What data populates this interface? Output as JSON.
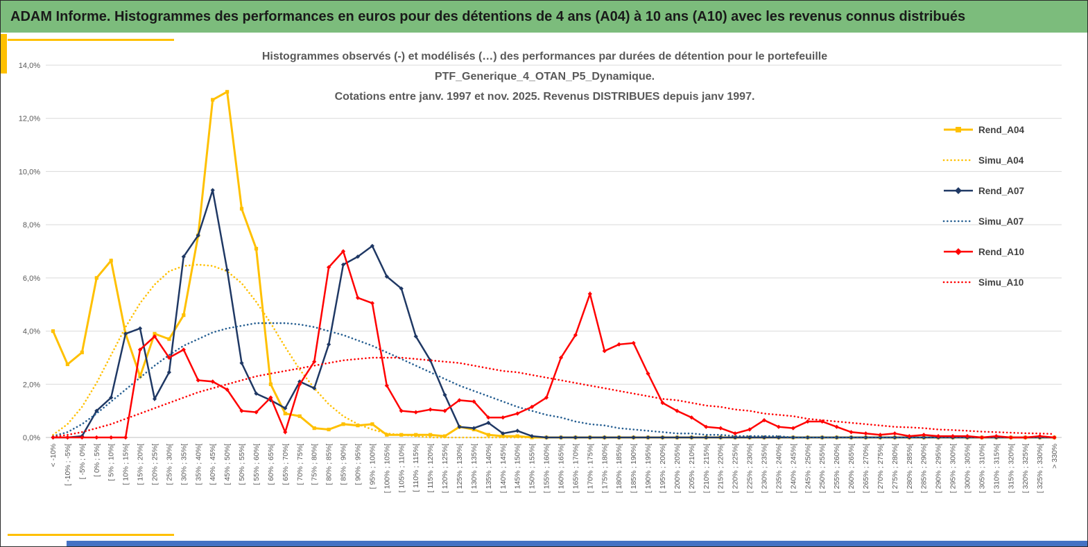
{
  "header": {
    "title": "ADAM Informe. Histogrammes des performances en euros pour des détentions de 4 ans (A04) à 10 ans (A10) avec les revenus connus distribués",
    "bg_color": "#7CBC7C",
    "text_color": "#1A1A1A"
  },
  "colors": {
    "accent_yellow": "#FFC000",
    "bottom_bar_blue": "#4472C4",
    "grid": "#D9D9D9",
    "axis_line": "#BFBFBF",
    "axis_text": "#595959",
    "chart_title": "#595959"
  },
  "chart_data": {
    "type": "line",
    "title_lines": [
      "Histogrammes observés (-) et modélisés (…) des performances par durées de détention pour le portefeuille",
      "PTF_Generique_4_OTAN_P5_Dynamique.",
      "Cotations entre janv. 1997 et nov. 2025. Revenus DISTRIBUES depuis janv 1997."
    ],
    "ylabel": "",
    "xlabel": "",
    "y_unit": "%",
    "ylim": [
      0,
      14
    ],
    "ytick_step": 2,
    "ytick_labels": [
      "0,0%",
      "2,0%",
      "4,0%",
      "6,0%",
      "8,0%",
      "10,0%",
      "12,0%",
      "14,0%"
    ],
    "grid": true,
    "legend_position": "right",
    "categories": [
      "< -10%",
      "[ -10% ; -5%[",
      "[ -5% ; 0%[",
      "[ 0% ; 5%[",
      "[ 5% ; 10%[",
      "[ 10% ; 15%[",
      "[ 15% ; 20%[",
      "[ 20% ; 25%[",
      "[ 25% ; 30%[",
      "[ 30% ; 35%[",
      "[ 35% ; 40%[",
      "[ 40% ; 45%[",
      "[ 45% ; 50%[",
      "[ 50% ; 55%[",
      "[ 55% ; 60%[",
      "[ 60% ; 65%[",
      "[ 65% ; 70%[",
      "[ 70% ; 75%[",
      "[ 75% ; 80%[",
      "[ 80% ; 85%[",
      "[ 85% ; 90%[",
      "[ 90% ; 95%[",
      "[ 95% ; 100%[",
      "[ 100% ; 105%[",
      "[ 105% ; 110%[",
      "[ 110% ; 115%[",
      "[ 115% ; 120%[",
      "[ 120% ; 125%[",
      "[ 125% ; 130%[",
      "[ 130% ; 135%[",
      "[ 135% ; 140%[",
      "[ 140% ; 145%[",
      "[ 145% ; 150%[",
      "[ 150% ; 155%[",
      "[ 155% ; 160%[",
      "[ 160% ; 165%[",
      "[ 165% ; 170%[",
      "[ 170% ; 175%[",
      "[ 175% ; 180%[",
      "[ 180% ; 185%[",
      "[ 185% ; 190%[",
      "[ 190% ; 195%[",
      "[ 195% ; 200%[",
      "[ 200% ; 205%[",
      "[ 205% ; 210%[",
      "[ 210% ; 215%[",
      "[ 215% ; 220%[",
      "[ 220% ; 225%[",
      "[ 225% ; 230%[",
      "[ 230% ; 235%[",
      "[ 235% ; 240%[",
      "[ 240% ; 245%[",
      "[ 245% ; 250%[",
      "[ 250% ; 255%[",
      "[ 255% ; 260%[",
      "[ 260% ; 265%[",
      "[ 265% ; 270%[",
      "[ 270% ; 275%[",
      "[ 275% ; 280%[",
      "[ 280% ; 285%[",
      "[ 285% ; 290%[",
      "[ 290% ; 295%[",
      "[ 295% ; 300%[",
      "[ 300% ; 305%[",
      "[ 305% ; 310%[",
      "[ 310% ; 315%[",
      "[ 315% ; 320%[",
      "[ 320% ; 325%[",
      "[ 325% ; 330%[",
      "> 330%"
    ],
    "series": [
      {
        "name": "Rend_A04",
        "color": "#FFC000",
        "style": "solid",
        "marker": "square",
        "width": 3,
        "values": [
          4.0,
          2.75,
          3.2,
          6.0,
          6.65,
          3.9,
          2.3,
          3.9,
          3.7,
          4.6,
          7.6,
          12.7,
          13.0,
          8.6,
          7.1,
          2.0,
          0.9,
          0.8,
          0.35,
          0.3,
          0.5,
          0.45,
          0.5,
          0.1,
          0.1,
          0.1,
          0.1,
          0.05,
          0.4,
          0.3,
          0.1,
          0.05,
          0.05,
          0,
          0,
          0,
          0,
          0,
          0,
          0,
          0,
          0,
          0,
          0,
          0,
          0,
          0,
          0,
          0,
          0,
          0,
          0,
          0,
          0,
          0,
          0,
          0,
          0,
          0,
          0,
          0,
          0,
          0,
          0,
          0,
          0,
          0,
          0,
          0,
          0
        ]
      },
      {
        "name": "Simu_A04",
        "color": "#FFC000",
        "style": "dotted",
        "marker": "none",
        "width": 2.6,
        "values": [
          0.1,
          0.5,
          1.15,
          2.05,
          3.1,
          4.15,
          5.05,
          5.75,
          6.25,
          6.45,
          6.5,
          6.45,
          6.25,
          5.8,
          5.1,
          4.3,
          3.4,
          2.55,
          1.85,
          1.25,
          0.8,
          0.5,
          0.3,
          0.15,
          0.1,
          0.05,
          0,
          0,
          0,
          0,
          0,
          0,
          0,
          0,
          0,
          0,
          0,
          0,
          0,
          0,
          0,
          0,
          0,
          0,
          0,
          0,
          0,
          0,
          0,
          0,
          0,
          0,
          0,
          0,
          0,
          0,
          0,
          0,
          0,
          0,
          0,
          0,
          0,
          0,
          0,
          0,
          0,
          0,
          0,
          0
        ]
      },
      {
        "name": "Rend_A07",
        "color": "#1F3864",
        "style": "solid",
        "marker": "diamond",
        "width": 2.5,
        "values": [
          0,
          0,
          0.05,
          1.0,
          1.5,
          3.9,
          4.1,
          1.45,
          2.45,
          6.8,
          7.6,
          9.3,
          6.3,
          2.8,
          1.65,
          1.4,
          1.1,
          2.1,
          1.85,
          3.5,
          6.5,
          6.8,
          7.2,
          6.05,
          5.6,
          3.8,
          2.9,
          1.6,
          0.4,
          0.35,
          0.55,
          0.15,
          0.25,
          0.05,
          0,
          0,
          0,
          0,
          0,
          0,
          0,
          0,
          0,
          0,
          0,
          0,
          0,
          0,
          0,
          0,
          0,
          0,
          0,
          0,
          0,
          0,
          0,
          0,
          0,
          0,
          0,
          0,
          0,
          0,
          0,
          0,
          0,
          0,
          0,
          0
        ]
      },
      {
        "name": "Simu_A07",
        "color": "#255E91",
        "style": "dotted",
        "marker": "none",
        "width": 2.6,
        "values": [
          0.05,
          0.2,
          0.5,
          0.9,
          1.35,
          1.8,
          2.25,
          2.7,
          3.1,
          3.45,
          3.7,
          3.95,
          4.1,
          4.2,
          4.3,
          4.3,
          4.3,
          4.25,
          4.15,
          4.0,
          3.85,
          3.65,
          3.45,
          3.2,
          2.95,
          2.7,
          2.45,
          2.2,
          1.95,
          1.75,
          1.55,
          1.35,
          1.15,
          1.0,
          0.85,
          0.75,
          0.6,
          0.5,
          0.45,
          0.35,
          0.3,
          0.25,
          0.2,
          0.15,
          0.15,
          0.1,
          0.1,
          0.05,
          0.05,
          0.05,
          0.05,
          0,
          0,
          0,
          0,
          0,
          0,
          0,
          0,
          0,
          0,
          0,
          0,
          0,
          0,
          0,
          0,
          0,
          0,
          0
        ]
      },
      {
        "name": "Rend_A10",
        "color": "#FF0000",
        "style": "solid",
        "marker": "diamond",
        "width": 2.5,
        "values": [
          0,
          0,
          0,
          0,
          0,
          0,
          3.3,
          3.8,
          3.0,
          3.3,
          2.15,
          2.1,
          1.8,
          1.0,
          0.95,
          1.5,
          0.2,
          2.0,
          2.85,
          6.4,
          7.0,
          5.25,
          5.05,
          1.95,
          1.0,
          0.95,
          1.05,
          1.0,
          1.4,
          1.35,
          0.75,
          0.75,
          0.9,
          1.15,
          1.5,
          3.0,
          3.85,
          5.4,
          3.25,
          3.5,
          3.55,
          2.4,
          1.3,
          1.0,
          0.75,
          0.4,
          0.35,
          0.15,
          0.3,
          0.65,
          0.4,
          0.35,
          0.6,
          0.6,
          0.4,
          0.2,
          0.15,
          0.1,
          0.15,
          0.05,
          0.1,
          0.05,
          0.05,
          0.05,
          0,
          0.05,
          0,
          0,
          0.05,
          0
        ]
      },
      {
        "name": "Simu_A10",
        "color": "#FF0000",
        "style": "dotted",
        "marker": "none",
        "width": 2.6,
        "values": [
          0.02,
          0.1,
          0.2,
          0.35,
          0.5,
          0.7,
          0.9,
          1.1,
          1.3,
          1.5,
          1.7,
          1.85,
          2.0,
          2.15,
          2.3,
          2.4,
          2.5,
          2.6,
          2.7,
          2.8,
          2.9,
          2.95,
          3.0,
          3.0,
          3.0,
          2.95,
          2.9,
          2.85,
          2.8,
          2.7,
          2.6,
          2.5,
          2.45,
          2.35,
          2.25,
          2.15,
          2.05,
          1.95,
          1.85,
          1.75,
          1.65,
          1.55,
          1.45,
          1.4,
          1.3,
          1.2,
          1.15,
          1.05,
          1.0,
          0.9,
          0.85,
          0.8,
          0.7,
          0.65,
          0.6,
          0.55,
          0.5,
          0.45,
          0.4,
          0.38,
          0.35,
          0.3,
          0.28,
          0.25,
          0.22,
          0.2,
          0.18,
          0.16,
          0.15,
          0.13
        ]
      }
    ]
  }
}
